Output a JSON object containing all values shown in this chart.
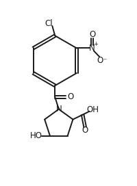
{
  "bg_color": "#ffffff",
  "line_color": "#1a1a1a",
  "line_width": 1.4,
  "figsize": [
    2.0,
    2.72
  ],
  "dpi": 100,
  "xlim": [
    0,
    10
  ],
  "ylim": [
    0,
    13.6
  ]
}
